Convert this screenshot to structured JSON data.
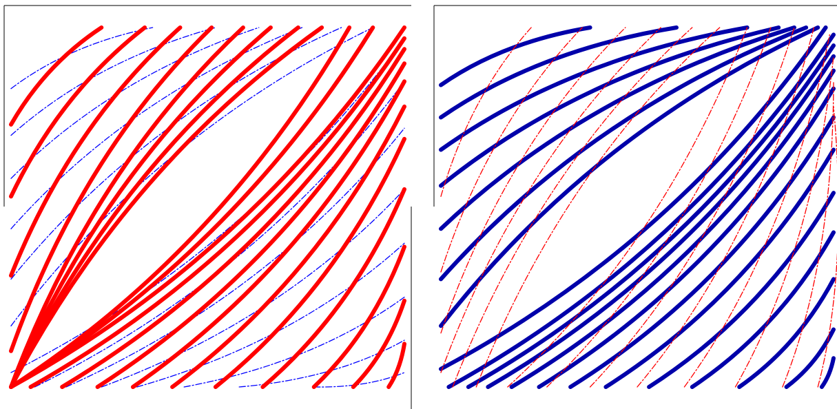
{
  "colors": {
    "red": "#ff0000",
    "blue": "#0000ff",
    "dark_blue": "#0000aa",
    "frame": "#000000",
    "background": "#ffffff"
  },
  "panels": [
    {
      "name": "left-panel",
      "thick_family": {
        "color_key": "red",
        "description_style": "solid",
        "endpoints": [
          [
            [
              0.0,
              0.27
            ],
            [
              0.23,
              0.0
            ]
          ],
          [
            [
              0.0,
              0.47
            ],
            [
              0.34,
              0.0
            ]
          ],
          [
            [
              0.0,
              0.69
            ],
            [
              0.43,
              0.0
            ]
          ],
          [
            [
              0.0,
              0.9
            ],
            [
              0.51,
              0.0
            ]
          ],
          [
            [
              0.0,
              1.0
            ],
            [
              0.59,
              0.0
            ]
          ],
          [
            [
              0.0,
              1.0
            ],
            [
              0.66,
              0.0
            ]
          ],
          [
            [
              0.0,
              1.0
            ],
            [
              0.73,
              0.0
            ]
          ],
          [
            [
              0.0,
              1.0
            ],
            [
              0.79,
              0.0
            ]
          ],
          [
            [
              0.0,
              1.0
            ],
            [
              0.86,
              0.0
            ]
          ],
          [
            [
              0.0,
              1.0
            ],
            [
              0.92,
              0.0
            ]
          ],
          [
            [
              0.0,
              1.0
            ],
            [
              1.0,
              0.0
            ]
          ],
          [
            [
              0.05,
              1.0
            ],
            [
              1.0,
              0.03
            ]
          ],
          [
            [
              0.13,
              1.0
            ],
            [
              1.0,
              0.06
            ]
          ],
          [
            [
              0.22,
              1.0
            ],
            [
              1.0,
              0.1
            ]
          ],
          [
            [
              0.31,
              1.0
            ],
            [
              1.0,
              0.15
            ]
          ],
          [
            [
              0.41,
              1.0
            ],
            [
              1.0,
              0.22
            ]
          ],
          [
            [
              0.52,
              1.0
            ],
            [
              1.0,
              0.31
            ]
          ],
          [
            [
              0.64,
              1.0
            ],
            [
              1.0,
              0.45
            ]
          ],
          [
            [
              0.77,
              1.0
            ],
            [
              1.0,
              0.61
            ]
          ],
          [
            [
              0.87,
              1.0
            ],
            [
              1.0,
              0.76
            ]
          ],
          [
            [
              0.96,
              1.0
            ],
            [
              1.0,
              0.88
            ]
          ]
        ]
      },
      "thin_family": {
        "color_key": "blue",
        "description_style": "dash-dot",
        "endpoints": [
          [
            [
              0.0,
              0.17
            ],
            [
              0.36,
              0.0
            ]
          ],
          [
            [
              0.0,
              0.3
            ],
            [
              0.52,
              0.0
            ]
          ],
          [
            [
              0.0,
              0.42
            ],
            [
              0.63,
              0.0
            ]
          ],
          [
            [
              0.0,
              0.56
            ],
            [
              0.74,
              0.0
            ]
          ],
          [
            [
              0.0,
              0.7
            ],
            [
              0.84,
              0.0
            ]
          ],
          [
            [
              0.0,
              0.83
            ],
            [
              0.92,
              0.0
            ]
          ],
          [
            [
              0.0,
              0.96
            ],
            [
              1.0,
              0.03
            ]
          ],
          [
            [
              0.06,
              1.0
            ],
            [
              1.0,
              0.15
            ]
          ],
          [
            [
              0.14,
              1.0
            ],
            [
              1.0,
              0.28
            ]
          ],
          [
            [
              0.23,
              1.0
            ],
            [
              1.0,
              0.45
            ]
          ],
          [
            [
              0.32,
              1.0
            ],
            [
              1.0,
              0.6
            ]
          ],
          [
            [
              0.44,
              1.0
            ],
            [
              1.0,
              0.75
            ]
          ],
          [
            [
              0.58,
              1.0
            ],
            [
              1.0,
              0.87
            ]
          ],
          [
            [
              0.77,
              1.0
            ],
            [
              1.0,
              0.96
            ]
          ]
        ]
      }
    },
    {
      "name": "right-panel",
      "thick_family": {
        "color_key": "dark_blue",
        "description_style": "solid",
        "endpoints": [
          [
            [
              0.0,
              0.16
            ],
            [
              0.38,
              0.0
            ]
          ],
          [
            [
              0.0,
              0.25
            ],
            [
              0.6,
              0.0
            ]
          ],
          [
            [
              0.0,
              0.34
            ],
            [
              0.78,
              0.0
            ]
          ],
          [
            [
              0.0,
              0.44
            ],
            [
              0.86,
              0.0
            ]
          ],
          [
            [
              0.0,
              0.56
            ],
            [
              0.9,
              0.0
            ]
          ],
          [
            [
              0.0,
              0.7
            ],
            [
              0.93,
              0.0
            ]
          ],
          [
            [
              0.0,
              0.83
            ],
            [
              0.96,
              0.0
            ]
          ],
          [
            [
              0.0,
              0.95
            ],
            [
              0.98,
              0.0
            ]
          ],
          [
            [
              0.02,
              1.0
            ],
            [
              1.0,
              0.02
            ]
          ],
          [
            [
              0.07,
              1.0
            ],
            [
              1.0,
              0.05
            ]
          ],
          [
            [
              0.12,
              1.0
            ],
            [
              1.0,
              0.08
            ]
          ],
          [
            [
              0.18,
              1.0
            ],
            [
              1.0,
              0.12
            ]
          ],
          [
            [
              0.25,
              1.0
            ],
            [
              1.0,
              0.17
            ]
          ],
          [
            [
              0.33,
              1.0
            ],
            [
              1.0,
              0.25
            ]
          ],
          [
            [
              0.42,
              1.0
            ],
            [
              1.0,
              0.34
            ]
          ],
          [
            [
              0.53,
              1.0
            ],
            [
              1.0,
              0.46
            ]
          ],
          [
            [
              0.64,
              1.0
            ],
            [
              1.0,
              0.57
            ]
          ],
          [
            [
              0.76,
              1.0
            ],
            [
              1.0,
              0.7
            ]
          ],
          [
            [
              0.88,
              1.0
            ],
            [
              1.0,
              0.84
            ]
          ],
          [
            [
              0.97,
              1.0
            ],
            [
              1.0,
              0.92
            ]
          ]
        ]
      },
      "thin_family": {
        "color_key": "red",
        "description_style": "dash-dot",
        "endpoints": [
          [
            [
              0.0,
              0.47
            ],
            [
              0.23,
              0.0
            ]
          ],
          [
            [
              0.0,
              0.68
            ],
            [
              0.36,
              0.0
            ]
          ],
          [
            [
              0.0,
              0.85
            ],
            [
              0.47,
              0.0
            ]
          ],
          [
            [
              0.0,
              0.96
            ],
            [
              0.56,
              0.0
            ]
          ],
          [
            [
              0.03,
              1.0
            ],
            [
              0.64,
              0.0
            ]
          ],
          [
            [
              0.09,
              1.0
            ],
            [
              0.71,
              0.0
            ]
          ],
          [
            [
              0.17,
              1.0
            ],
            [
              0.78,
              0.0
            ]
          ],
          [
            [
              0.27,
              1.0
            ],
            [
              0.84,
              0.0
            ]
          ],
          [
            [
              0.38,
              1.0
            ],
            [
              0.9,
              0.0
            ]
          ],
          [
            [
              0.5,
              1.0
            ],
            [
              0.95,
              0.0
            ]
          ],
          [
            [
              0.62,
              1.0
            ],
            [
              0.99,
              0.02
            ]
          ],
          [
            [
              0.75,
              1.0
            ],
            [
              1.0,
              0.08
            ]
          ],
          [
            [
              0.87,
              1.0
            ],
            [
              1.0,
              0.15
            ]
          ],
          [
            [
              0.96,
              1.0
            ],
            [
              1.0,
              0.22
            ]
          ]
        ]
      }
    }
  ]
}
